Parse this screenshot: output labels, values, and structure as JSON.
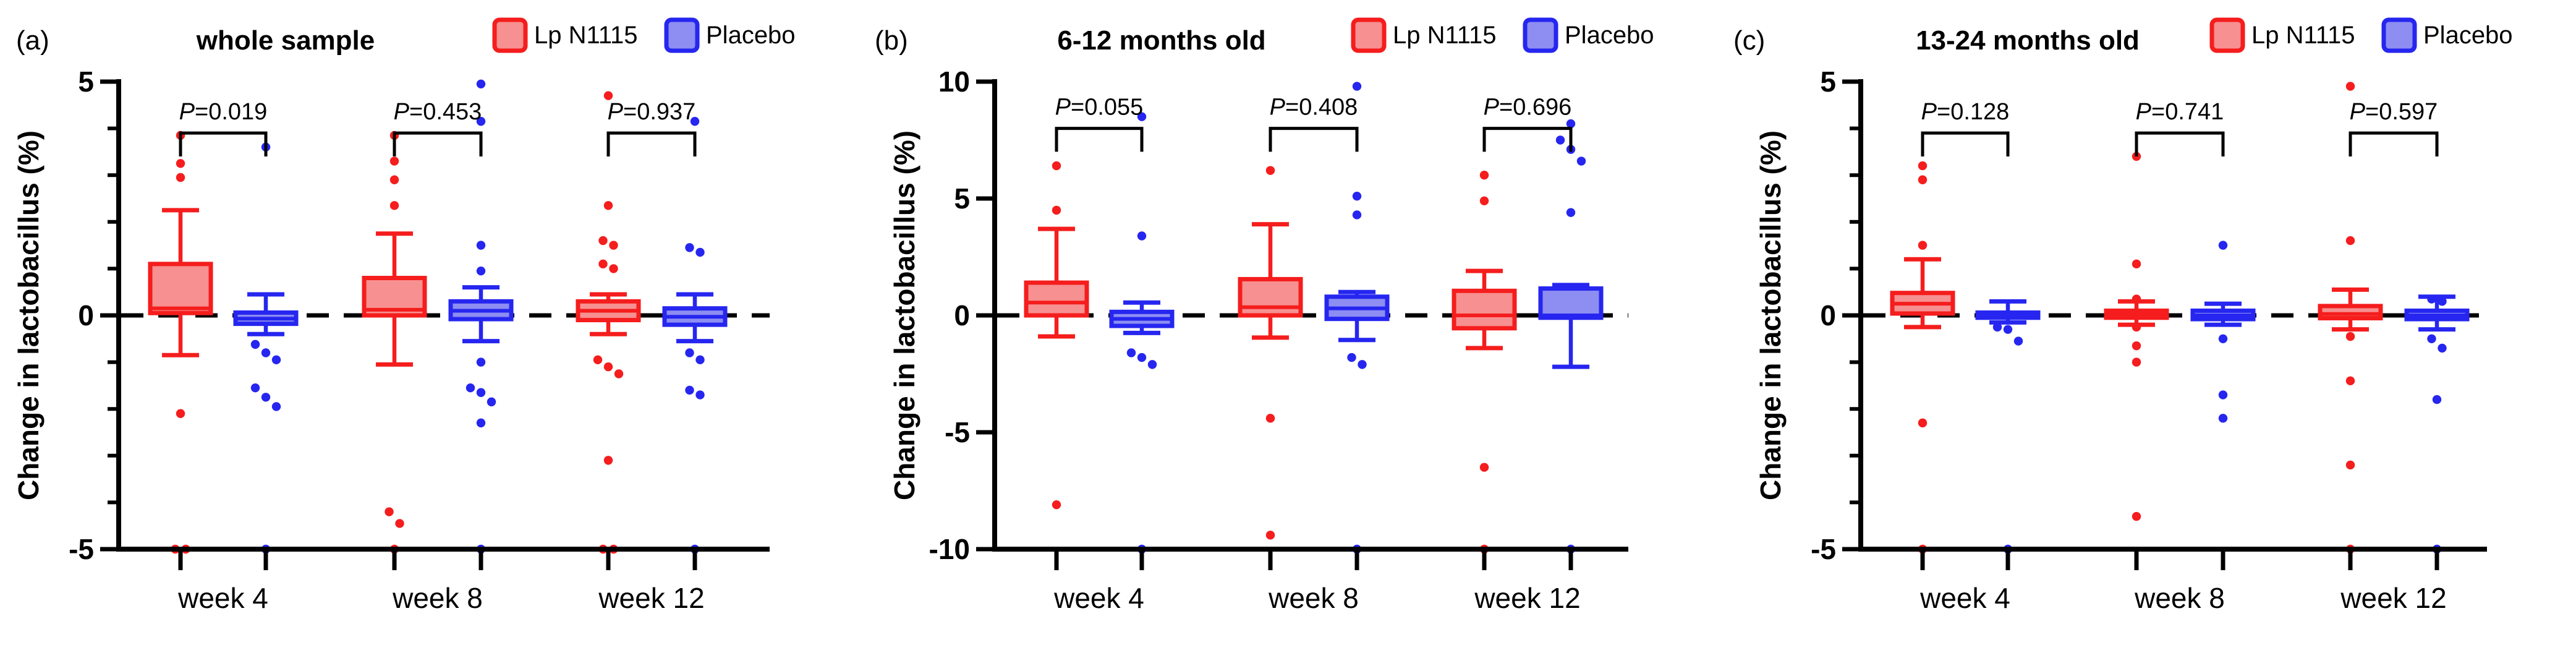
{
  "figure": {
    "ylabel": "Change in lactobacillus (%)",
    "legend": [
      {
        "label": "Lp N1115",
        "stroke": "#f51d1d",
        "fill": "#f79090"
      },
      {
        "label": "Placebo",
        "stroke": "#2626f0",
        "fill": "#8d8df2"
      }
    ],
    "zero_line_color": "#000000",
    "axis_color": "#000000"
  },
  "chart_data": [
    {
      "type": "box",
      "panel_label": "(a)",
      "title": "whole sample",
      "ylabel": "Change in lactobacillus (%)",
      "ylim": [
        -5,
        5
      ],
      "yticks": [
        5,
        0,
        -5
      ],
      "minor_tick_step": 1,
      "categories": [
        "week 4",
        "week 8",
        "week 12"
      ],
      "zero_line": true,
      "legend_position": "top-right",
      "comparisons": [
        {
          "label": "P=0.019"
        },
        {
          "label": "P=0.453"
        },
        {
          "label": "P=0.937"
        }
      ],
      "bracket_y": 3.9,
      "bracket_drop": 0.5,
      "series": [
        {
          "name": "Lp N1115",
          "boxes": [
            {
              "lo": -0.85,
              "q1": 0.05,
              "med": 0.15,
              "q3": 1.1,
              "hi": 2.25,
              "pts": [
                3.85,
                3.25,
                2.95,
                -2.1,
                -5,
                -5
              ]
            },
            {
              "lo": -1.05,
              "q1": 0.0,
              "med": 0.12,
              "q3": 0.8,
              "hi": 1.75,
              "pts": [
                3.85,
                3.3,
                2.9,
                2.35,
                -4.2,
                -4.45,
                -5
              ]
            },
            {
              "lo": -0.4,
              "q1": -0.1,
              "med": 0.1,
              "q3": 0.3,
              "hi": 0.45,
              "pts": [
                4.7,
                2.35,
                1.6,
                1.5,
                1.1,
                1.0,
                -0.95,
                -1.1,
                -1.25,
                -3.1,
                -5,
                -5
              ]
            }
          ]
        },
        {
          "name": "Placebo",
          "boxes": [
            {
              "lo": -0.4,
              "q1": -0.18,
              "med": -0.07,
              "q3": 0.06,
              "hi": 0.45,
              "pts": [
                3.6,
                -0.62,
                -0.8,
                -0.95,
                -1.55,
                -1.75,
                -1.95,
                -5
              ]
            },
            {
              "lo": -0.55,
              "q1": -0.08,
              "med": 0.1,
              "q3": 0.3,
              "hi": 0.6,
              "pts": [
                4.95,
                4.15,
                1.5,
                0.95,
                -1.0,
                -1.55,
                -1.65,
                -1.85,
                -2.3,
                -5
              ]
            },
            {
              "lo": -0.55,
              "q1": -0.2,
              "med": -0.03,
              "q3": 0.15,
              "hi": 0.45,
              "pts": [
                4.15,
                1.45,
                1.35,
                -0.8,
                -0.95,
                -1.6,
                -1.7,
                -5
              ]
            }
          ]
        }
      ]
    },
    {
      "type": "box",
      "panel_label": "(b)",
      "title": "6-12 months old",
      "ylabel": "Change in lactobacillus (%)",
      "ylim": [
        -10,
        10
      ],
      "yticks": [
        10,
        5,
        0,
        -5,
        -10
      ],
      "minor_tick_step": null,
      "categories": [
        "week 4",
        "week 8",
        "week 12"
      ],
      "zero_line": true,
      "legend_position": "top-right",
      "comparisons": [
        {
          "label": "P=0.055"
        },
        {
          "label": "P=0.408"
        },
        {
          "label": "P=0.696"
        }
      ],
      "bracket_y": 8.0,
      "bracket_drop": 1.0,
      "series": [
        {
          "name": "Lp N1115",
          "boxes": [
            {
              "lo": -0.9,
              "q1": 0.0,
              "med": 0.55,
              "q3": 1.4,
              "hi": 3.7,
              "pts": [
                6.4,
                4.5,
                -8.1
              ]
            },
            {
              "lo": -0.95,
              "q1": 0.0,
              "med": 0.35,
              "q3": 1.55,
              "hi": 3.9,
              "pts": [
                6.2,
                -4.4,
                -9.4
              ]
            },
            {
              "lo": -1.4,
              "q1": -0.55,
              "med": 0.0,
              "q3": 1.05,
              "hi": 1.9,
              "pts": [
                6.0,
                4.9,
                -6.5,
                -10
              ]
            }
          ]
        },
        {
          "name": "Placebo",
          "boxes": [
            {
              "lo": -0.75,
              "q1": -0.45,
              "med": -0.15,
              "q3": 0.15,
              "hi": 0.55,
              "pts": [
                8.5,
                3.4,
                -1.6,
                -1.8,
                -2.1,
                -10
              ]
            },
            {
              "lo": -1.05,
              "q1": -0.15,
              "med": 0.3,
              "q3": 0.8,
              "hi": 1.0,
              "pts": [
                9.8,
                5.1,
                4.3,
                -1.8,
                -2.1,
                -10
              ]
            },
            {
              "lo": -2.2,
              "q1": -0.1,
              "med": 0.0,
              "q3": 1.15,
              "hi": 1.3,
              "pts": [
                8.2,
                7.5,
                7.1,
                6.6,
                4.4,
                -10
              ]
            }
          ]
        }
      ]
    },
    {
      "type": "box",
      "panel_label": "(c)",
      "title": "13-24 months old",
      "ylabel": "Change in lactobacillus (%)",
      "ylim": [
        -5,
        5
      ],
      "yticks": [
        5,
        0,
        -5
      ],
      "minor_tick_step": 1,
      "categories": [
        "week 4",
        "week 8",
        "week 12"
      ],
      "zero_line": true,
      "legend_position": "top-right",
      "comparisons": [
        {
          "label": "P=0.128"
        },
        {
          "label": "P=0.741"
        },
        {
          "label": "P=0.597"
        }
      ],
      "bracket_y": 3.9,
      "bracket_drop": 0.5,
      "series": [
        {
          "name": "Lp N1115",
          "boxes": [
            {
              "lo": -0.25,
              "q1": 0.04,
              "med": 0.25,
              "q3": 0.48,
              "hi": 1.2,
              "pts": [
                3.2,
                2.9,
                1.5,
                -2.3,
                -5
              ]
            },
            {
              "lo": -0.2,
              "q1": -0.05,
              "med": 0.02,
              "q3": 0.1,
              "hi": 0.3,
              "pts": [
                3.4,
                1.1,
                0.35,
                -0.25,
                -0.65,
                -1.0,
                -4.3
              ]
            },
            {
              "lo": -0.3,
              "q1": -0.06,
              "med": 0.03,
              "q3": 0.2,
              "hi": 0.55,
              "pts": [
                4.9,
                1.6,
                -0.45,
                -1.4,
                -3.2,
                -5
              ]
            }
          ]
        },
        {
          "name": "Placebo",
          "boxes": [
            {
              "lo": -0.15,
              "q1": -0.05,
              "med": 0.0,
              "q3": 0.06,
              "hi": 0.3,
              "pts": [
                -0.25,
                -0.3,
                -0.55,
                -5
              ]
            },
            {
              "lo": -0.2,
              "q1": -0.08,
              "med": 0.0,
              "q3": 0.1,
              "hi": 0.25,
              "pts": [
                1.5,
                -0.5,
                -1.7,
                -2.2
              ]
            },
            {
              "lo": -0.3,
              "q1": -0.08,
              "med": 0.0,
              "q3": 0.1,
              "hi": 0.4,
              "pts": [
                0.35,
                0.3,
                -0.5,
                -0.7,
                -1.8,
                -5
              ]
            }
          ]
        }
      ]
    }
  ]
}
